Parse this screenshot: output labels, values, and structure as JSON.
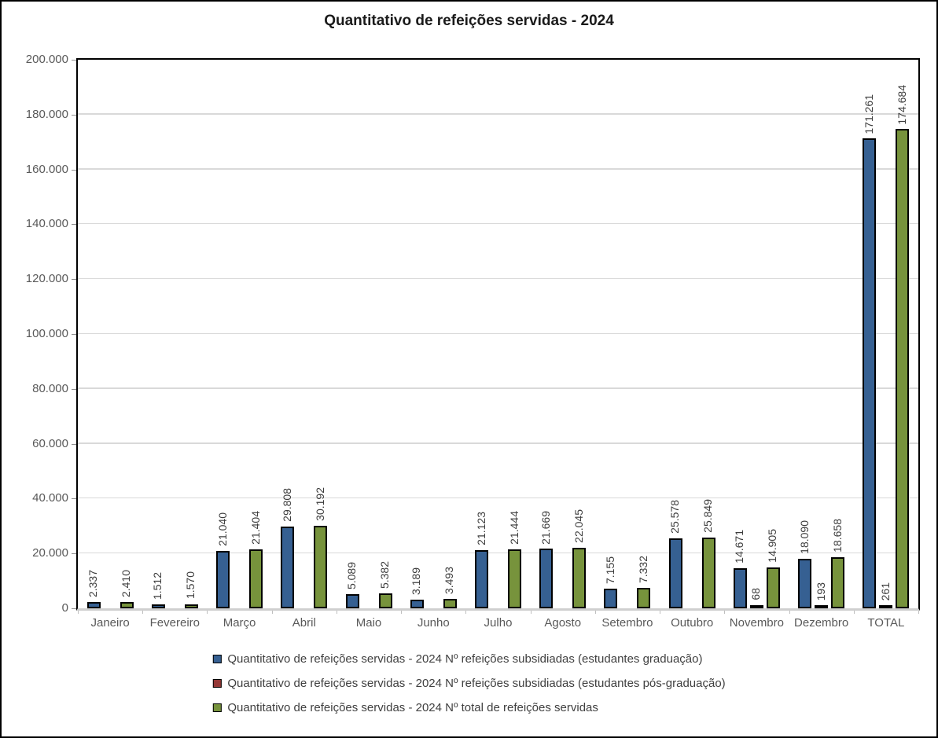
{
  "title": "Quantitativo de refeições servidas - 2024",
  "chart_data": {
    "type": "bar",
    "title": "Quantitativo de refeições servidas - 2024",
    "categories": [
      "Janeiro",
      "Fevereiro",
      "Março",
      "Abril",
      "Maio",
      "Junho",
      "Julho",
      "Agosto",
      "Setembro",
      "Outubro",
      "Novembro",
      "Dezembro",
      "TOTAL"
    ],
    "series": [
      {
        "name": "Quantitativo de refeições servidas - 2024 Nº refeições subsidiadas (estudantes graduação)",
        "color": "#366092",
        "values": [
          2337,
          1512,
          21040,
          29808,
          5089,
          3189,
          21123,
          21669,
          7155,
          25578,
          14671,
          18090,
          171261
        ]
      },
      {
        "name": "Quantitativo de refeições servidas - 2024 Nº refeições subsidiadas (estudantes pós-graduação)",
        "color": "#953735",
        "values": [
          0,
          0,
          0,
          0,
          0,
          0,
          0,
          0,
          0,
          0,
          68,
          193,
          261
        ]
      },
      {
        "name": "Quantitativo de refeições servidas - 2024 Nº total de refeições servidas",
        "color": "#77933C",
        "values": [
          2410,
          1570,
          21404,
          30192,
          5382,
          3493,
          21444,
          22045,
          7332,
          25849,
          14905,
          18658,
          174684
        ]
      }
    ],
    "xlabel": "",
    "ylabel": "",
    "ylim": [
      0,
      200000
    ],
    "ytick_step": 20000,
    "ytick_labels": [
      "0",
      "20.000",
      "40.000",
      "60.000",
      "80.000",
      "100.000",
      "120.000",
      "140.000",
      "160.000",
      "180.000",
      "200.000"
    ],
    "grid": true,
    "legend_position": "bottom",
    "thousands_separator": ".",
    "colors": {
      "bar_border": "#000000",
      "gridline": "#d9d9d9",
      "axis_text": "#595959",
      "data_label": "#3d3d3d",
      "baseline": "#cfcfcf",
      "plot_border": "#000000"
    }
  }
}
